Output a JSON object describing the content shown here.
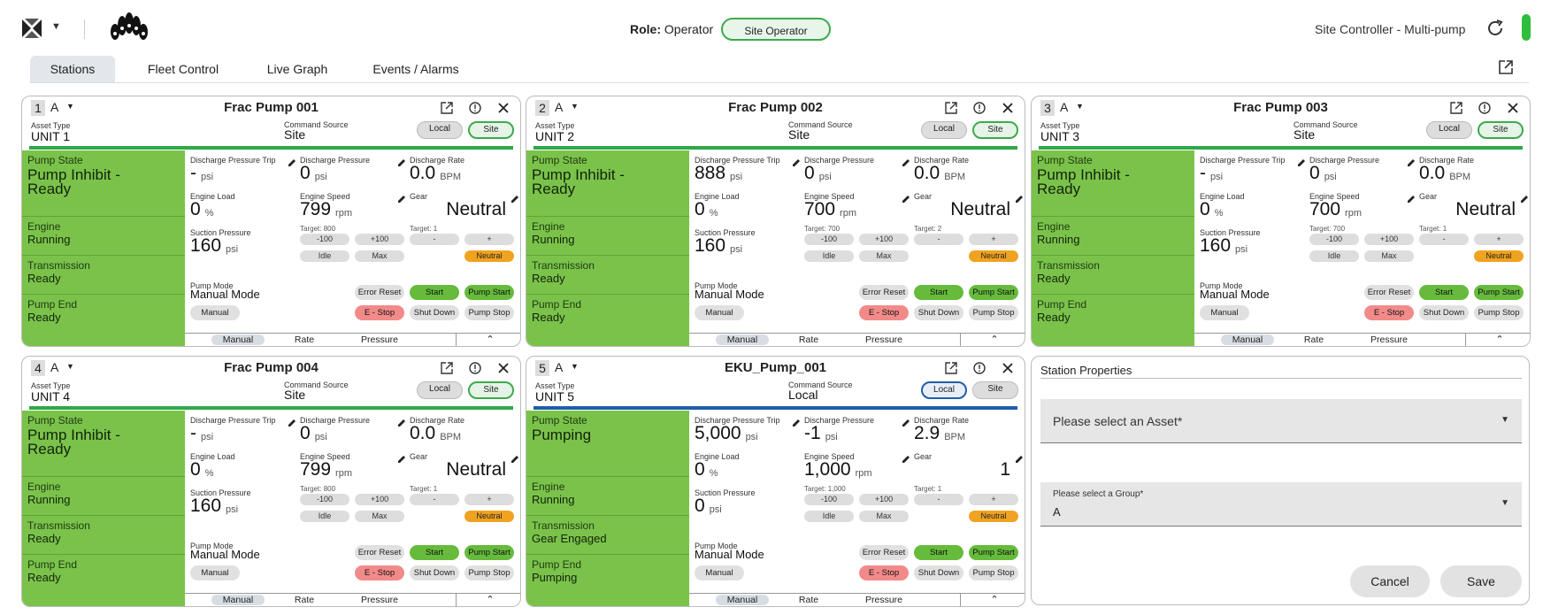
{
  "header": {
    "role_label": "Role:",
    "role_value": "Operator",
    "role_button": "Site Operator",
    "site_title": "Site Controller - Multi-pump"
  },
  "tabs": [
    "Stations",
    "Fleet Control",
    "Live Graph",
    "Events / Alarms"
  ],
  "colors": {
    "accent_green": "#3cab4c",
    "state_green": "#7bc24b",
    "blue": "#1f5fa8",
    "orange": "#f0a320",
    "red": "#f28a8a"
  },
  "common": {
    "asset_type": "Asset Type",
    "command_source": "Command Source",
    "local": "Local",
    "site": "Site",
    "pump_state": "Pump State",
    "engine": "Engine",
    "transmission": "Transmission",
    "pump_end": "Pump End",
    "dp_trip": "Discharge Pressure Trip",
    "dp": "Discharge Pressure",
    "dr": "Discharge Rate",
    "engine_load": "Engine Load",
    "engine_speed": "Engine Speed",
    "gear": "Gear",
    "suction_pressure": "Suction Pressure",
    "psi": "psi",
    "bpm": "BPM",
    "pct": "%",
    "rpm": "rpm",
    "target": "Target:",
    "minus100": "-100",
    "plus100": "+100",
    "idle": "Idle",
    "max": "Max",
    "minus": "-",
    "plus": "+",
    "neutral": "Neutral",
    "pump_mode": "Pump Mode",
    "error_reset": "Error Reset",
    "start": "Start",
    "pump_start": "Pump Start",
    "manual": "Manual",
    "estop": "E - Stop",
    "shut_down": "Shut Down",
    "pump_stop": "Pump Stop",
    "rate": "Rate",
    "pressure": "Pressure",
    "group": "A"
  },
  "cards": [
    {
      "num": "1",
      "title": "Frac Pump 001",
      "unit": "UNIT 1",
      "cmd": "Site",
      "pump_state": "Pump Inhibit - Ready",
      "engine": "Running",
      "transmission": "Ready",
      "pump_end": "Ready",
      "dp_trip": "-",
      "dp": "0",
      "dr": "0.0",
      "load": "0",
      "speed": "799",
      "gear": "Neutral",
      "speed_target": "800",
      "gear_target": "1",
      "suction": "160",
      "mode": "Manual Mode"
    },
    {
      "num": "2",
      "title": "Frac Pump 002",
      "unit": "UNIT 2",
      "cmd": "Site",
      "pump_state": "Pump Inhibit - Ready",
      "engine": "Running",
      "transmission": "Ready",
      "pump_end": "Ready",
      "dp_trip": "888",
      "dp": "0",
      "dr": "0.0",
      "load": "0",
      "speed": "700",
      "gear": "Neutral",
      "speed_target": "700",
      "gear_target": "2",
      "suction": "160",
      "mode": "Manual Mode"
    },
    {
      "num": "3",
      "title": "Frac Pump 003",
      "unit": "UNIT 3",
      "cmd": "Site",
      "pump_state": "Pump Inhibit - Ready",
      "engine": "Running",
      "transmission": "Ready",
      "pump_end": "Ready",
      "dp_trip": "-",
      "dp": "0",
      "dr": "0.0",
      "load": "0",
      "speed": "700",
      "gear": "Neutral",
      "speed_target": "700",
      "gear_target": "1",
      "suction": "160",
      "mode": "Manual Mode"
    },
    {
      "num": "4",
      "title": "Frac Pump 004",
      "unit": "UNIT 4",
      "cmd": "Site",
      "pump_state": "Pump Inhibit - Ready",
      "engine": "Running",
      "transmission": "Ready",
      "pump_end": "Ready",
      "dp_trip": "-",
      "dp": "0",
      "dr": "0.0",
      "load": "0",
      "speed": "799",
      "gear": "Neutral",
      "speed_target": "800",
      "gear_target": "1",
      "suction": "160",
      "mode": "Manual Mode"
    },
    {
      "num": "5",
      "title": "EKU_Pump_001",
      "unit": "UNIT 5",
      "cmd": "Local",
      "pump_state": "Pumping",
      "engine": "Running",
      "transmission": "Gear Engaged",
      "pump_end": "Pumping",
      "dp_trip": "5,000",
      "dp": "-1",
      "dr": "2.9",
      "load": "0",
      "speed": "1,000",
      "gear": "1",
      "speed_target": "1,000",
      "gear_target": "1",
      "suction": "0",
      "mode": "Manual Mode"
    }
  ],
  "station_properties": {
    "title": "Station Properties",
    "asset_placeholder": "Please select an Asset*",
    "group_label": "Please select a Group*",
    "group_value": "A",
    "cancel": "Cancel",
    "save": "Save"
  }
}
